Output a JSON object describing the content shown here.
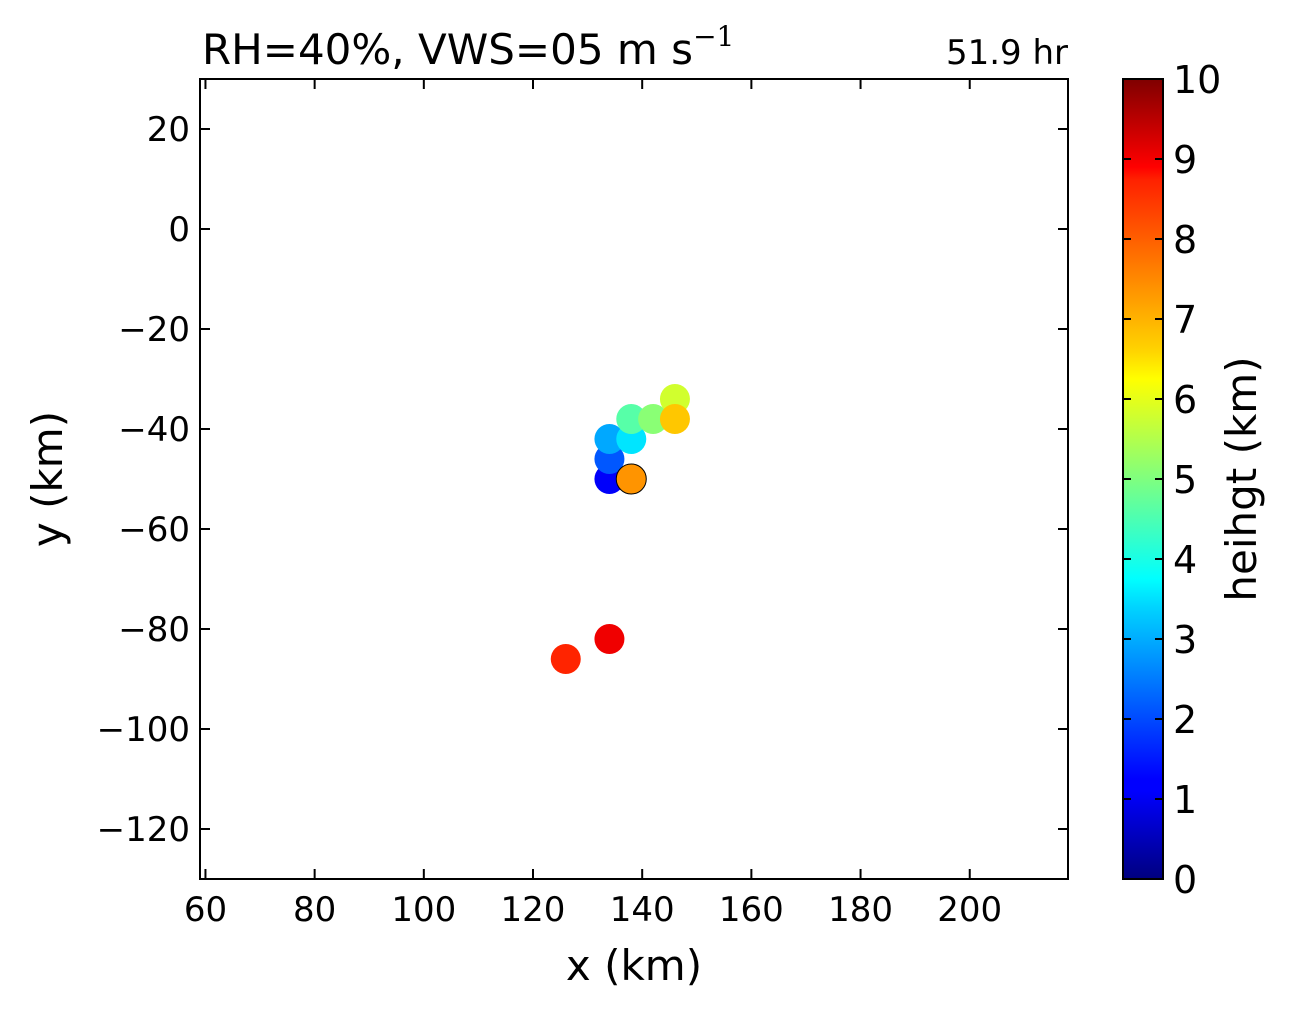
{
  "chart_data": {
    "type": "scatter",
    "title": "RH=40%, VWS=05 m s",
    "title_superscript": "−1",
    "time_label": "51.9 hr",
    "time_color": "#0000ff",
    "xlabel": "x (km)",
    "ylabel": "y (km)",
    "xlim": [
      59,
      218
    ],
    "ylim": [
      -130,
      30
    ],
    "xticks": [
      60,
      80,
      100,
      120,
      140,
      160,
      180,
      200
    ],
    "yticks": [
      20,
      0,
      -20,
      -40,
      -60,
      -80,
      -100,
      -120
    ],
    "xtick_labels": [
      "60",
      "80",
      "100",
      "120",
      "140",
      "160",
      "180",
      "200"
    ],
    "ytick_labels": [
      "20",
      "0",
      "−20",
      "−40",
      "−60",
      "−80",
      "−100",
      "−120"
    ],
    "grid": false,
    "colorbar": {
      "label": "heihgt (km)",
      "colormap": "jet",
      "range": [
        0,
        10
      ],
      "ticks": [
        0,
        1,
        2,
        3,
        4,
        5,
        6,
        7,
        8,
        9,
        10
      ],
      "tick_labels": [
        "0",
        "1",
        "2",
        "3",
        "4",
        "5",
        "6",
        "7",
        "8",
        "9",
        "10"
      ]
    },
    "points": [
      {
        "x": 134,
        "y": -50,
        "height": 1.2
      },
      {
        "x": 134,
        "y": -46,
        "height": 2.1
      },
      {
        "x": 134,
        "y": -42,
        "height": 2.9
      },
      {
        "x": 138,
        "y": -42,
        "height": 3.5
      },
      {
        "x": 138,
        "y": -38,
        "height": 4.6
      },
      {
        "x": 142,
        "y": -38,
        "height": 5.1
      },
      {
        "x": 146,
        "y": -34,
        "height": 5.8
      },
      {
        "x": 146,
        "y": -38,
        "height": 6.8
      },
      {
        "x": 138,
        "y": -50,
        "height": 7.3,
        "outlined": true
      },
      {
        "x": 134,
        "y": -82,
        "height": 8.9
      },
      {
        "x": 126,
        "y": -86,
        "height": 8.4
      }
    ]
  }
}
